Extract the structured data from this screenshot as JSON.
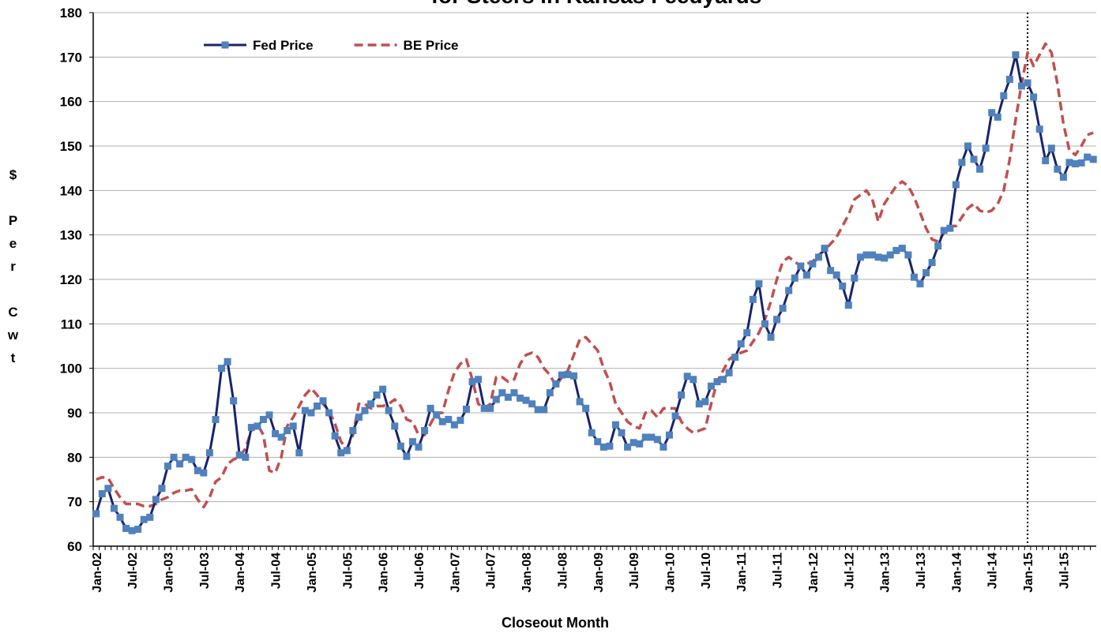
{
  "chart_data": {
    "type": "line",
    "title": "for Steers in Kansas Feedyards",
    "x_label": "Closeout Month",
    "y_label": "$ Per Cwt",
    "categories": [
      "Jan-02",
      null,
      null,
      null,
      null,
      null,
      "Jul-02",
      null,
      null,
      null,
      null,
      null,
      "Jan-03",
      null,
      null,
      null,
      null,
      null,
      "Jul-03",
      null,
      null,
      null,
      null,
      null,
      "Jan-04",
      null,
      null,
      null,
      null,
      null,
      "Jul-04",
      null,
      null,
      null,
      null,
      null,
      "Jan-05",
      null,
      null,
      null,
      null,
      null,
      "Jul-05",
      null,
      null,
      null,
      null,
      null,
      "Jan-06",
      null,
      null,
      null,
      null,
      null,
      "Jul-06",
      null,
      null,
      null,
      null,
      null,
      "Jan-07",
      null,
      null,
      null,
      null,
      null,
      "Jul-07",
      null,
      null,
      null,
      null,
      null,
      "Jan-08",
      null,
      null,
      null,
      null,
      null,
      "Jul-08",
      null,
      null,
      null,
      null,
      null,
      "Jan-09",
      null,
      null,
      null,
      null,
      null,
      "Jul-09",
      null,
      null,
      null,
      null,
      null,
      "Jan-10",
      null,
      null,
      null,
      null,
      null,
      "Jul-10",
      null,
      null,
      null,
      null,
      null,
      "Jan-11",
      null,
      null,
      null,
      null,
      null,
      "Jul-11",
      null,
      null,
      null,
      null,
      null,
      "Jan-12",
      null,
      null,
      null,
      null,
      null,
      "Jul-12",
      null,
      null,
      null,
      null,
      null,
      "Jan-13",
      null,
      null,
      null,
      null,
      null,
      "Jul-13",
      null,
      null,
      null,
      null,
      null,
      "Jan-14",
      null,
      null,
      null,
      null,
      null,
      "Jul-14",
      null,
      null,
      null,
      null,
      null,
      "Jan-15",
      null,
      null,
      null,
      null,
      null,
      "Jul-15",
      null,
      null,
      null,
      null,
      null
    ],
    "series": [
      {
        "name": "Fed Price",
        "color": "#17246b",
        "marker_color": "#4f81bd",
        "style": "solid",
        "marker": "square",
        "values": [
          67.3,
          71.8,
          73,
          68.5,
          66.5,
          64,
          63.5,
          63.8,
          66,
          66.5,
          70.5,
          73,
          78,
          80,
          78.5,
          80,
          79.5,
          77,
          76.5,
          81,
          88.5,
          100,
          101.5,
          92.7,
          80.5,
          80,
          86.7,
          87,
          88.5,
          89.5,
          85.3,
          84.5,
          86,
          87,
          81,
          90.5,
          90,
          91.5,
          92.7,
          90,
          84.8,
          81,
          81.5,
          86,
          89,
          90.5,
          92,
          94,
          95.3,
          90.5,
          87,
          82.5,
          80.2,
          83.5,
          82.3,
          86,
          91,
          89.5,
          88,
          88.5,
          87.3,
          88.3,
          90.8,
          97,
          97.5,
          91,
          91,
          93,
          94.5,
          93.5,
          94.5,
          93.3,
          92.8,
          92,
          90.7,
          90.7,
          94.5,
          96.5,
          98.5,
          98.6,
          98.3,
          92.5,
          91,
          85.5,
          83.5,
          82.3,
          82.5,
          87.3,
          85.5,
          82.3,
          83.3,
          83,
          84.5,
          84.5,
          84,
          82.3,
          85,
          89.3,
          94,
          98.2,
          97.5,
          92,
          92.5,
          96,
          97,
          97.5,
          99,
          102.5,
          105.5,
          108,
          115.5,
          119,
          110,
          107,
          111,
          113.5,
          117.5,
          120.3,
          123,
          121,
          123.5,
          125,
          127,
          122,
          121,
          118.5,
          114.2,
          120.3,
          125,
          125.5,
          125.5,
          125,
          124.8,
          125.5,
          126.5,
          127,
          125.5,
          120.5,
          119,
          121.5,
          123.8,
          127.5,
          131,
          131.5,
          141.3,
          146.3,
          150,
          147,
          144.8,
          149.5,
          157.5,
          156.5,
          161.3,
          165,
          170.5,
          163.5,
          164.2,
          161,
          153.8,
          146.7,
          149.5,
          144.8,
          143,
          146.3,
          146,
          146.2,
          147.5,
          147
        ]
      },
      {
        "name": "BE Price",
        "color": "#c0504d",
        "style": "dashed",
        "values": [
          75,
          75.5,
          75.3,
          73,
          71,
          69.5,
          69.5,
          69.5,
          69,
          69,
          69.5,
          70.5,
          71,
          72,
          72.5,
          72.5,
          72.8,
          70.5,
          68.8,
          71,
          74.5,
          75.5,
          78.5,
          79.5,
          80,
          82,
          86,
          87.5,
          85,
          77,
          76.5,
          80,
          87,
          89,
          91.5,
          94,
          95.5,
          94,
          92,
          90.5,
          87.5,
          83.5,
          82,
          85,
          92,
          92,
          91,
          91.5,
          91.5,
          92,
          93,
          91.5,
          88.5,
          88,
          85,
          85,
          87.5,
          90,
          90,
          95,
          99,
          101,
          102,
          97.5,
          92,
          91,
          92,
          98,
          98,
          97,
          97.5,
          101,
          103,
          103.5,
          102.5,
          100,
          98.5,
          96,
          98,
          99.5,
          103,
          106.5,
          107,
          105.5,
          104,
          100,
          97,
          92,
          90,
          88,
          87,
          86.5,
          90,
          90.5,
          89,
          91,
          91,
          91,
          88,
          86.5,
          85.5,
          86,
          86.5,
          92,
          97,
          99.5,
          102,
          103,
          103.5,
          104,
          106,
          108,
          111,
          115,
          120,
          124,
          125,
          124,
          123,
          123.5,
          124,
          125.5,
          126.5,
          128,
          129.5,
          132,
          134.5,
          138,
          139,
          140,
          138,
          133,
          137,
          139,
          141,
          142,
          141,
          138.5,
          135,
          131.5,
          129,
          128.5,
          130.5,
          132,
          132,
          134,
          136,
          137,
          135.5,
          135,
          135.5,
          137,
          140,
          147,
          156,
          164,
          171,
          168,
          170.5,
          173,
          171,
          164,
          155,
          149,
          148,
          150,
          152.5,
          153
        ]
      }
    ],
    "ylim": [
      60,
      180
    ],
    "yticks": [
      60,
      70,
      80,
      90,
      100,
      110,
      120,
      130,
      140,
      150,
      160,
      170,
      180
    ],
    "grid": true,
    "legend": "upper left",
    "reference_line": {
      "category": "Jan-15",
      "style": "dotted",
      "color": "#000000"
    }
  }
}
